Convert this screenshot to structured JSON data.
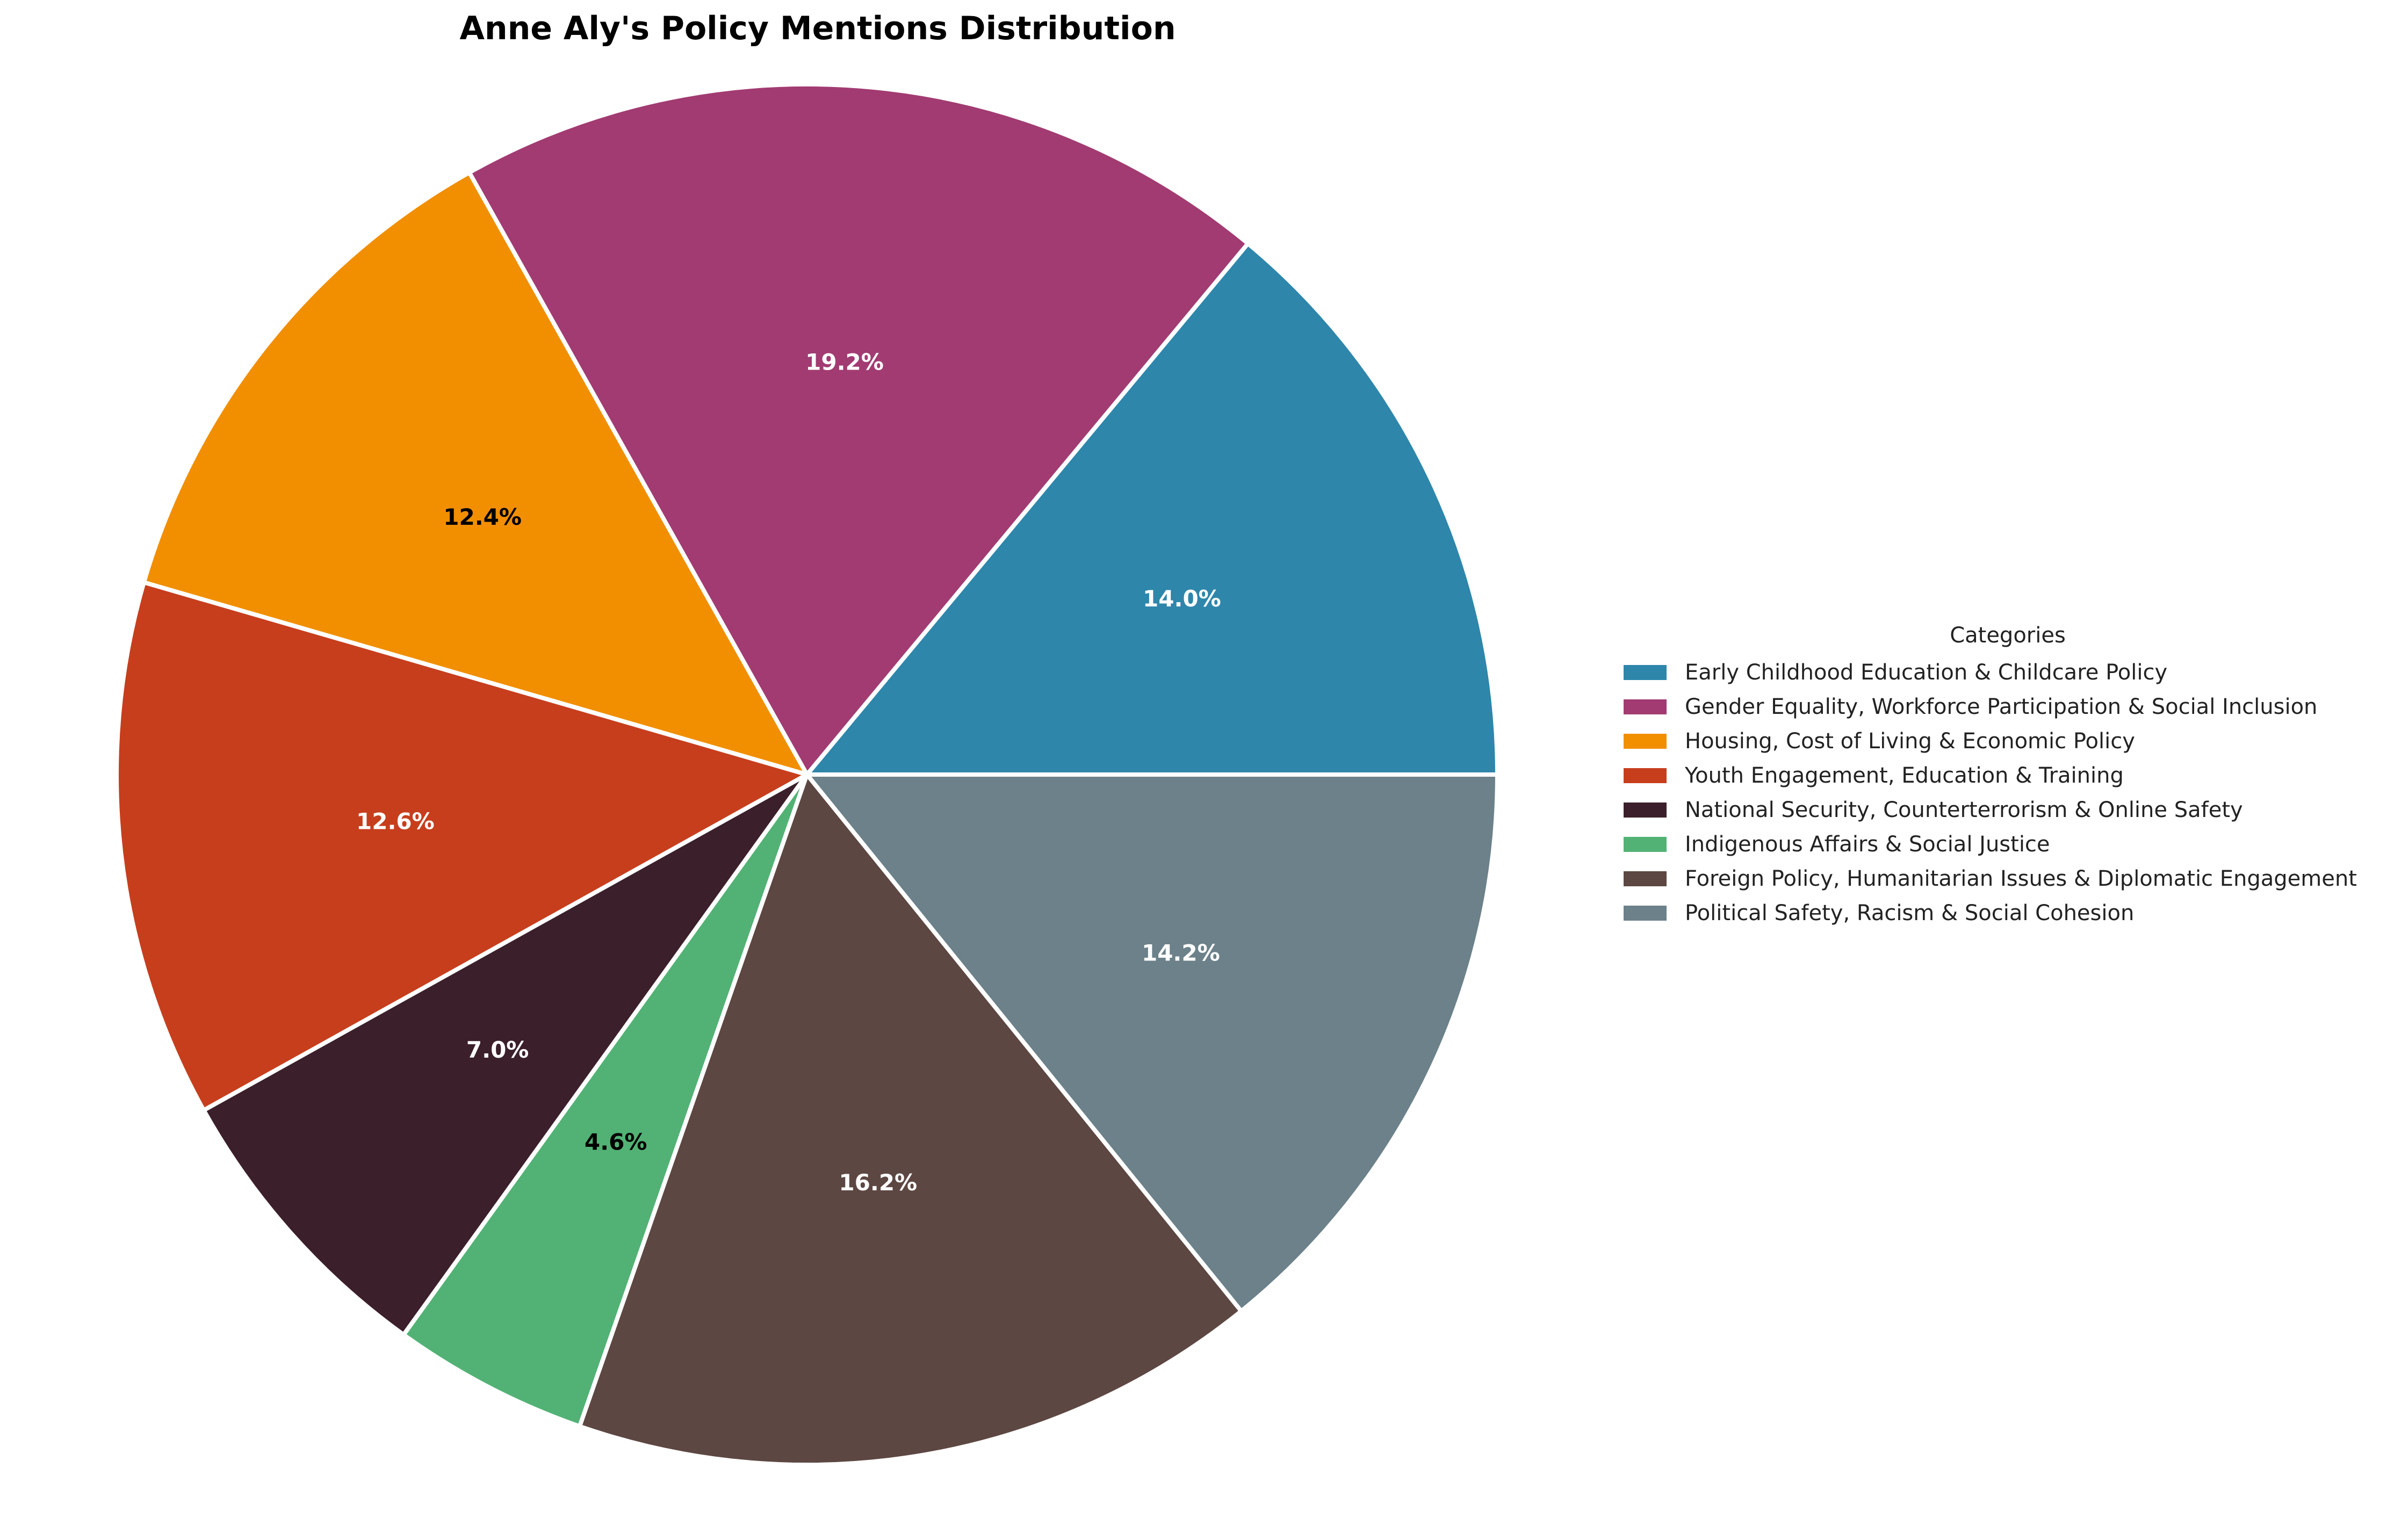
{
  "chart_data": {
    "type": "pie",
    "title": "Anne Aly's Policy Mentions Distribution",
    "legend_title": "Categories",
    "legend_position": "right",
    "start_angle_deg": 0,
    "direction": "counterclockwise",
    "slices": [
      {
        "label": "Early Childhood Education & Childcare Policy",
        "value": 14.0,
        "display": "14.0%",
        "color": "#2E86AB",
        "text_color": "#ffffff"
      },
      {
        "label": "Gender Equality, Workforce Participation & Social Inclusion",
        "value": 19.2,
        "display": "19.2%",
        "color": "#A23B72",
        "text_color": "#ffffff"
      },
      {
        "label": "Housing, Cost of Living & Economic Policy",
        "value": 12.4,
        "display": "12.4%",
        "color": "#F18F01",
        "text_color": "#000000"
      },
      {
        "label": "Youth Engagement, Education & Training",
        "value": 12.6,
        "display": "12.6%",
        "color": "#C73E1D",
        "text_color": "#ffffff"
      },
      {
        "label": "National Security, Counterterrorism & Online Safety",
        "value": 7.0,
        "display": "7.0%",
        "color": "#3B1F2B",
        "text_color": "#ffffff"
      },
      {
        "label": "Indigenous Affairs & Social Justice",
        "value": 4.6,
        "display": "4.6%",
        "color": "#52B275",
        "text_color": "#000000"
      },
      {
        "label": "Foreign Policy, Humanitarian Issues & Diplomatic Engagement",
        "value": 16.2,
        "display": "16.2%",
        "color": "#5D4742",
        "text_color": "#ffffff"
      },
      {
        "label": "Political Safety, Racism & Social Cohesion",
        "value": 14.2,
        "display": "14.2%",
        "color": "#6C818A",
        "text_color": "#ffffff"
      }
    ]
  }
}
